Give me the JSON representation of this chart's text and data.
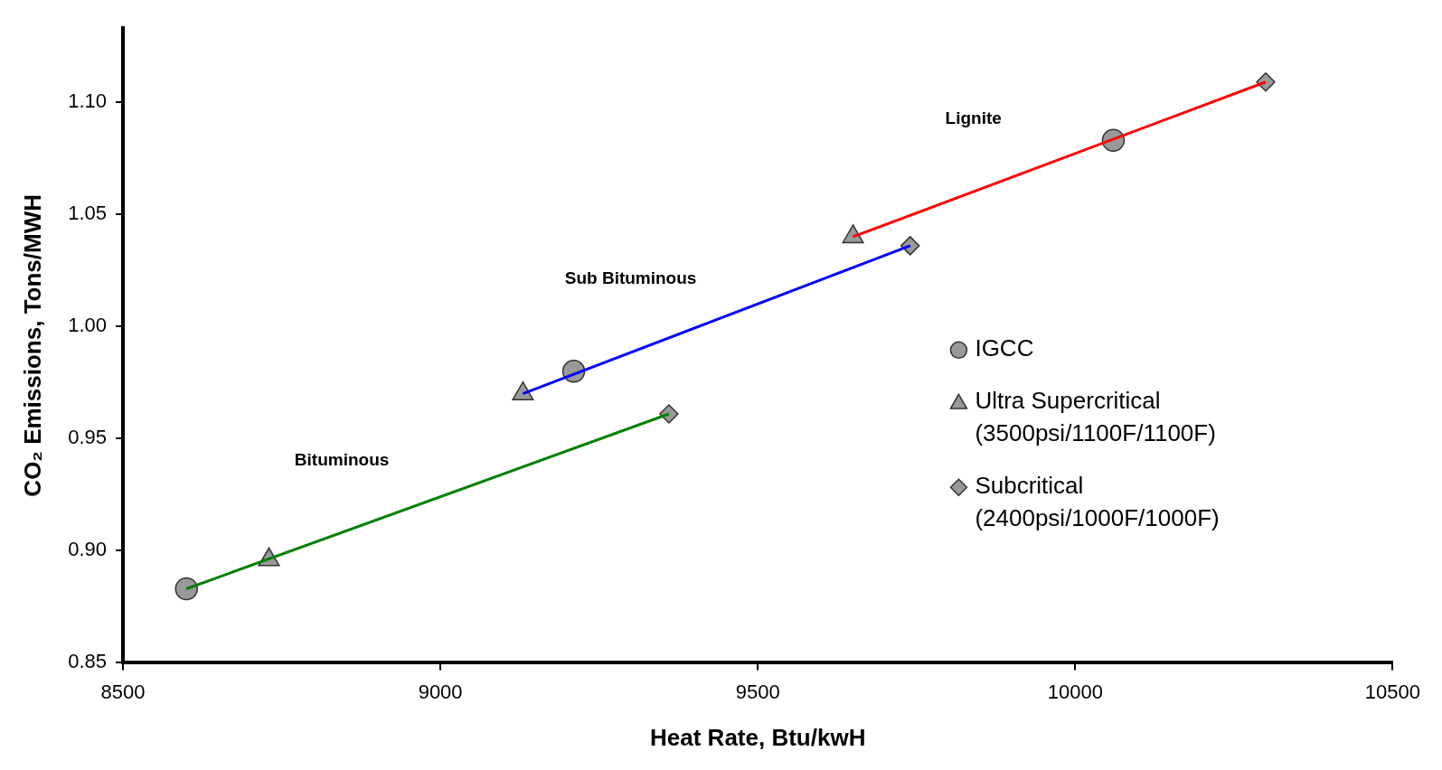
{
  "chart_data": {
    "type": "scatter",
    "xlabel": "Heat Rate, Btu/kwH",
    "ylabel": "CO₂ Emissions, Tons/MWH",
    "xlim": [
      8500,
      10500
    ],
    "xticks": [
      8500,
      9000,
      9500,
      10000,
      10500
    ],
    "ylim": [
      0.85,
      1.133
    ],
    "yticks": [
      0.85,
      {
        "value": 0.9,
        "label": "0.90"
      },
      0.95,
      {
        "value": 1.0,
        "label": "1.00"
      },
      1.05,
      {
        "value": 1.1,
        "label": "1.10"
      }
    ],
    "grid": false,
    "legend": "right",
    "series": [
      {
        "type": "line",
        "name": "Bituminous",
        "color": "#008000",
        "marker": "none",
        "line_style": "solid",
        "x": [
          8600,
          9360
        ],
        "values": [
          0.883,
          0.961
        ]
      },
      {
        "type": "line",
        "name": "Sub Bituminous",
        "color": "#0000ff",
        "marker": "none",
        "line_style": "solid",
        "x": [
          9130,
          9740
        ],
        "values": [
          0.97,
          1.036
        ]
      },
      {
        "type": "line",
        "name": "Lignite",
        "color": "#ff0000",
        "marker": "none",
        "line_style": "solid",
        "x": [
          9650,
          10300
        ],
        "values": [
          1.04,
          1.109
        ]
      },
      {
        "type": "scatter",
        "name": "IGCC",
        "color": "#999999",
        "marker": "circle",
        "x": [
          8600,
          9210,
          10060
        ],
        "values": [
          0.883,
          0.98,
          1.083
        ]
      },
      {
        "type": "scatter",
        "name": "Ultra Supercritical (3500psi/1100F/1100F)",
        "color": "#999999",
        "marker": "triangle",
        "x": [
          8730,
          9130,
          9650
        ],
        "values": [
          0.896,
          0.97,
          1.04
        ]
      },
      {
        "type": "scatter",
        "name": "Subcritical (2400psi/1000F/1000F)",
        "color": "#999999",
        "marker": "diamond",
        "x": [
          9360,
          9740,
          10300
        ],
        "values": [
          0.961,
          1.036,
          1.109
        ]
      }
    ]
  }
}
